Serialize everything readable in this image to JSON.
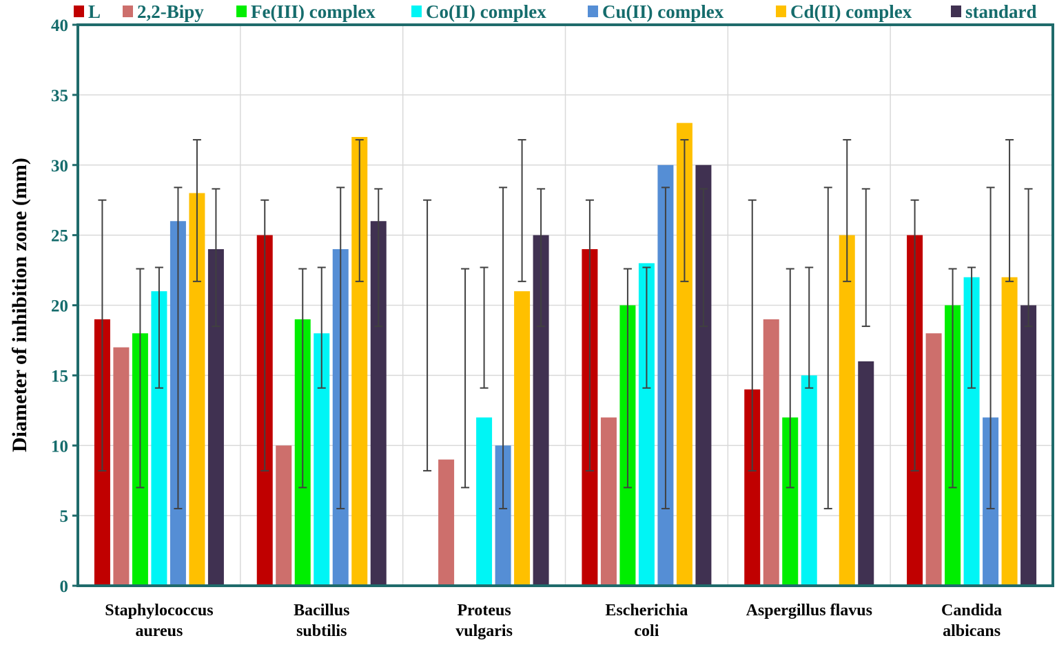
{
  "chart_data": {
    "type": "bar",
    "title": "",
    "xlabel": "",
    "ylabel": "Diameter of inhibition zone (mm)",
    "ylim": [
      0,
      40
    ],
    "yticks": [
      "0",
      "5",
      "10",
      "15",
      "20",
      "25",
      "30",
      "35",
      "40"
    ],
    "grid": true,
    "legend_position": "top",
    "categories": [
      [
        "Staphylococcus",
        "aureus"
      ],
      [
        "Bacillus",
        "subtilis"
      ],
      [
        "Proteus",
        "vulgaris"
      ],
      [
        "Escherichia",
        "coli"
      ],
      [
        "Aspergillus flavus"
      ],
      [
        "Candida",
        "albicans"
      ]
    ],
    "series": [
      {
        "name": "L",
        "color": "#c00000",
        "values": [
          19,
          25,
          0,
          24,
          14,
          25
        ],
        "error_high": [
          27.5,
          27.5,
          27.5,
          27.5,
          27.5,
          27.5
        ],
        "error_low": [
          8.2,
          8.2,
          8.2,
          8.2,
          8.2,
          8.2
        ]
      },
      {
        "name": "2,2-Bipy",
        "color": "#cd6f6c",
        "values": [
          17,
          10,
          9,
          12,
          19,
          18
        ],
        "error_high": [
          null,
          null,
          null,
          null,
          null,
          null
        ],
        "error_low": [
          null,
          null,
          null,
          null,
          null,
          null
        ]
      },
      {
        "name": "Fe(III) complex",
        "color": "#00ee00",
        "values": [
          18,
          19,
          0,
          20,
          12,
          20
        ],
        "error_high": [
          22.6,
          22.6,
          22.6,
          22.6,
          22.6,
          22.6
        ],
        "error_low": [
          7.0,
          7.0,
          7.0,
          7.0,
          7.0,
          7.0
        ]
      },
      {
        "name": "Co(II) complex",
        "color": "#00f5f5",
        "values": [
          21,
          18,
          12,
          23,
          15,
          22
        ],
        "error_high": [
          22.7,
          22.7,
          22.7,
          22.7,
          22.7,
          22.7
        ],
        "error_low": [
          14.1,
          14.1,
          14.1,
          14.1,
          14.1,
          14.1
        ]
      },
      {
        "name": "Cu(II) complex",
        "color": "#558ed5",
        "values": [
          26,
          24,
          10,
          30,
          0,
          12
        ],
        "error_high": [
          28.4,
          28.4,
          28.4,
          28.4,
          28.4,
          28.4
        ],
        "error_low": [
          5.5,
          5.5,
          5.5,
          5.5,
          5.5,
          5.5
        ]
      },
      {
        "name": "Cd(II) complex",
        "color": "#ffc000",
        "values": [
          28,
          32,
          21,
          33,
          25,
          22
        ],
        "error_high": [
          31.8,
          31.8,
          31.8,
          31.8,
          31.8,
          31.8
        ],
        "error_low": [
          21.7,
          21.7,
          21.7,
          21.7,
          21.7,
          21.7
        ]
      },
      {
        "name": "standard",
        "color": "#403151",
        "values": [
          24,
          26,
          25,
          30,
          16,
          20
        ],
        "error_high": [
          28.3,
          28.3,
          28.3,
          28.3,
          28.3,
          28.3
        ],
        "error_low": [
          18.5,
          18.5,
          18.5,
          18.5,
          18.5,
          18.5
        ]
      }
    ]
  },
  "colors": {
    "axis": "#1f6b6b",
    "grid": "#d9d9d9",
    "errorbar": "#404040",
    "legend_text": "#156c6c"
  }
}
